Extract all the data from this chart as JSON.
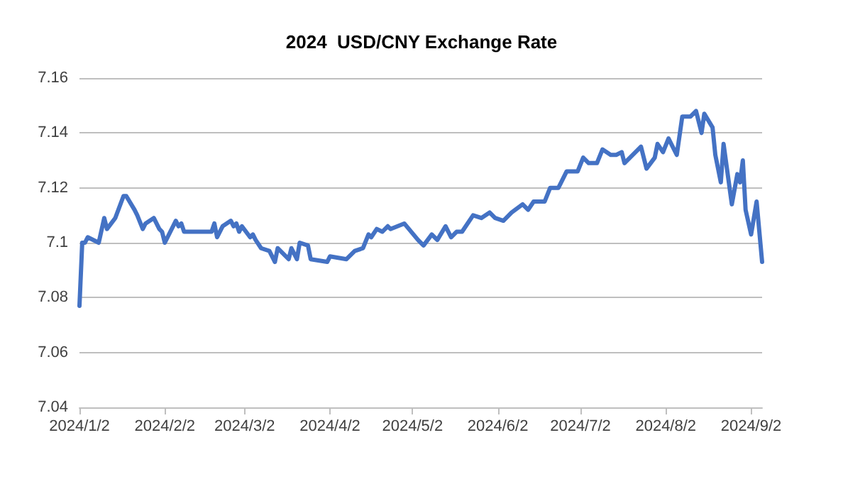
{
  "chart_data": {
    "type": "line",
    "title": "2024  USD/CNY Exchange Rate",
    "x": [
      "2024-01-02",
      "2024-01-03",
      "2024-01-04",
      "2024-01-05",
      "2024-01-09",
      "2024-01-11",
      "2024-01-12",
      "2024-01-15",
      "2024-01-18",
      "2024-01-19",
      "2024-01-22",
      "2024-01-23",
      "2024-01-25",
      "2024-01-26",
      "2024-01-29",
      "2024-01-31",
      "2024-02-01",
      "2024-02-02",
      "2024-02-06",
      "2024-02-07",
      "2024-02-08",
      "2024-02-09",
      "2024-02-19",
      "2024-02-20",
      "2024-02-21",
      "2024-02-23",
      "2024-02-26",
      "2024-02-27",
      "2024-02-28",
      "2024-02-29",
      "2024-03-01",
      "2024-03-04",
      "2024-03-05",
      "2024-03-06",
      "2024-03-08",
      "2024-03-11",
      "2024-03-13",
      "2024-03-14",
      "2024-03-18",
      "2024-03-19",
      "2024-03-21",
      "2024-03-22",
      "2024-03-25",
      "2024-03-26",
      "2024-04-01",
      "2024-04-02",
      "2024-04-08",
      "2024-04-11",
      "2024-04-14",
      "2024-04-16",
      "2024-04-17",
      "2024-04-19",
      "2024-04-21",
      "2024-04-23",
      "2024-04-24",
      "2024-04-29",
      "2024-05-04",
      "2024-05-06",
      "2024-05-09",
      "2024-05-11",
      "2024-05-14",
      "2024-05-16",
      "2024-05-18",
      "2024-05-20",
      "2024-05-24",
      "2024-05-27",
      "2024-05-30",
      "2024-06-01",
      "2024-06-04",
      "2024-06-07",
      "2024-06-11",
      "2024-06-13",
      "2024-06-15",
      "2024-06-19",
      "2024-06-21",
      "2024-06-24",
      "2024-06-27",
      "2024-07-01",
      "2024-07-03",
      "2024-07-05",
      "2024-07-08",
      "2024-07-10",
      "2024-07-13",
      "2024-07-15",
      "2024-07-17",
      "2024-07-18",
      "2024-07-20",
      "2024-07-22",
      "2024-07-24",
      "2024-07-26",
      "2024-07-29",
      "2024-07-30",
      "2024-08-01",
      "2024-08-03",
      "2024-08-06",
      "2024-08-08",
      "2024-08-11",
      "2024-08-13",
      "2024-08-15",
      "2024-08-16",
      "2024-08-19",
      "2024-08-20",
      "2024-08-22",
      "2024-08-23",
      "2024-08-26",
      "2024-08-28",
      "2024-08-29",
      "2024-08-30",
      "2024-08-31",
      "2024-09-02",
      "2024-09-04",
      "2024-09-06"
    ],
    "series": [
      {
        "color": "#4472c4",
        "values": [
          7.077,
          7.1,
          7.1,
          7.102,
          7.1,
          7.109,
          7.105,
          7.109,
          7.117,
          7.117,
          7.112,
          7.11,
          7.105,
          7.107,
          7.109,
          7.105,
          7.104,
          7.1,
          7.108,
          7.106,
          7.107,
          7.104,
          7.104,
          7.107,
          7.102,
          7.106,
          7.108,
          7.106,
          7.107,
          7.104,
          7.106,
          7.102,
          7.103,
          7.101,
          7.098,
          7.097,
          7.093,
          7.098,
          7.094,
          7.098,
          7.094,
          7.1,
          7.099,
          7.094,
          7.093,
          7.095,
          7.094,
          7.097,
          7.098,
          7.103,
          7.102,
          7.105,
          7.104,
          7.106,
          7.105,
          7.107,
          7.101,
          7.099,
          7.103,
          7.101,
          7.106,
          7.102,
          7.104,
          7.104,
          7.11,
          7.109,
          7.111,
          7.109,
          7.108,
          7.111,
          7.114,
          7.112,
          7.115,
          7.115,
          7.12,
          7.12,
          7.126,
          7.126,
          7.131,
          7.129,
          7.129,
          7.134,
          7.132,
          7.132,
          7.133,
          7.129,
          7.131,
          7.133,
          7.135,
          7.127,
          7.131,
          7.136,
          7.133,
          7.138,
          7.132,
          7.146,
          7.146,
          7.148,
          7.14,
          7.147,
          7.142,
          7.132,
          7.122,
          7.136,
          7.114,
          7.125,
          7.122,
          7.13,
          7.112,
          7.103,
          7.115,
          7.093
        ]
      }
    ],
    "xlim": [
      "2024-01-02",
      "2024-09-06"
    ],
    "xticks": [
      {
        "value": "2024-01-02",
        "label": "2024/1/2"
      },
      {
        "value": "2024-02-02",
        "label": "2024/2/2"
      },
      {
        "value": "2024-03-02",
        "label": "2024/3/2"
      },
      {
        "value": "2024-04-02",
        "label": "2024/4/2"
      },
      {
        "value": "2024-05-02",
        "label": "2024/5/2"
      },
      {
        "value": "2024-06-02",
        "label": "2024/6/2"
      },
      {
        "value": "2024-07-02",
        "label": "2024/7/2"
      },
      {
        "value": "2024-08-02",
        "label": "2024/8/2"
      },
      {
        "value": "2024-09-02",
        "label": "2024/9/2"
      }
    ],
    "ylim": [
      7.04,
      7.16
    ],
    "yticks": [
      {
        "value": 7.04,
        "label": "7.04"
      },
      {
        "value": 7.06,
        "label": "7.06"
      },
      {
        "value": 7.08,
        "label": "7.08"
      },
      {
        "value": 7.1,
        "label": "7.1"
      },
      {
        "value": 7.12,
        "label": "7.12"
      },
      {
        "value": 7.14,
        "label": "7.14"
      },
      {
        "value": 7.16,
        "label": "7.16"
      }
    ],
    "grid": "y",
    "marker": "none",
    "line_style": "solid"
  }
}
